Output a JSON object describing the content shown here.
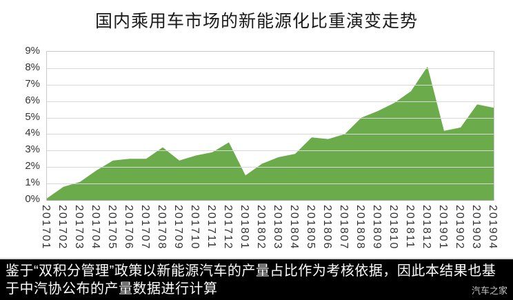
{
  "header": {
    "title": "国内乘用车市场的新能源化比重演变走势"
  },
  "chart_data": {
    "type": "area",
    "title": "国内乘用车市场的新能源化比重演变走势",
    "categories": [
      "201701",
      "201702",
      "201703",
      "201704",
      "201705",
      "201706",
      "201707",
      "201708",
      "201709",
      "201710",
      "201711",
      "201712",
      "201801",
      "201802",
      "201803",
      "201804",
      "201805",
      "201806",
      "201807",
      "201808",
      "201809",
      "201810",
      "201811",
      "201812",
      "201901",
      "201902",
      "201903",
      "201904"
    ],
    "values": [
      0.1,
      0.8,
      1.1,
      1.8,
      2.4,
      2.5,
      2.5,
      3.2,
      2.4,
      2.7,
      2.9,
      3.5,
      1.5,
      2.2,
      2.6,
      2.8,
      3.8,
      3.7,
      4.0,
      5.0,
      5.4,
      5.9,
      6.6,
      8.1,
      4.2,
      4.4,
      5.8,
      5.6
    ],
    "unit": "%",
    "xlabel": "",
    "ylabel": "",
    "ylim": [
      0,
      9
    ],
    "ytick_labels": [
      "0%",
      "1%",
      "2%",
      "3%",
      "4%",
      "5%",
      "6%",
      "7%",
      "8%",
      "9%"
    ],
    "xtick_rotation_deg": 90,
    "grid": true,
    "legend": false
  },
  "footer": {
    "note": "鉴于“双积分管理”政策以新能源汽车的产量占比作为考核依据，因此本结果也基于中汽协公布的产量数据进行计算",
    "watermark": "汽车之家"
  },
  "colors": {
    "area_fill": "#6cab4b",
    "gridline": "#d8d8d8",
    "axis_text": "#333333",
    "title_text": "#1a1a1a",
    "footer_bg": "#000000",
    "footer_text": "#ffffff"
  }
}
